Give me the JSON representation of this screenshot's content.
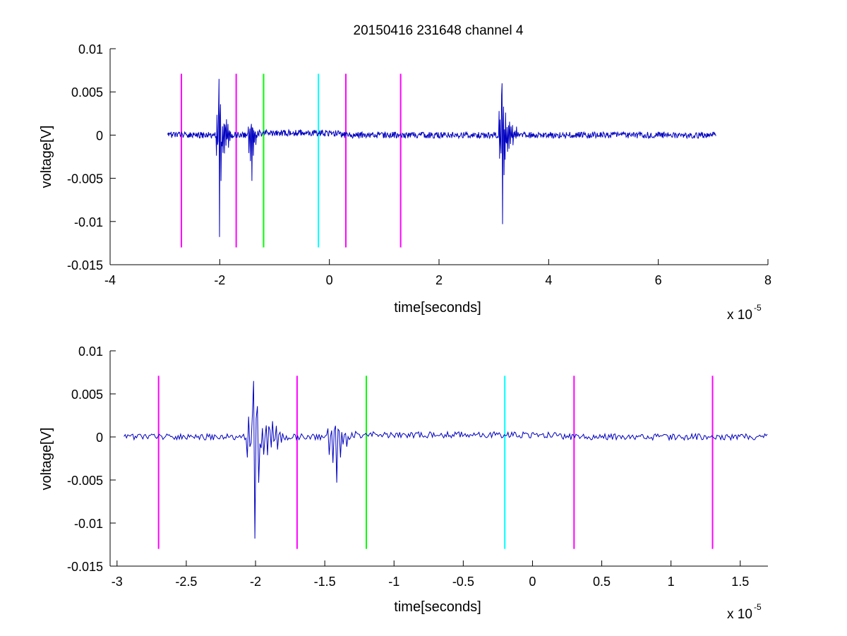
{
  "chart_data": [
    {
      "type": "line",
      "title": "20150416 231648 channel 4",
      "xlabel": "time[seconds]",
      "ylabel": "voltage[V]",
      "x_exponent_label": "x 10",
      "x_exponent": "-5",
      "xlim": [
        -4,
        8
      ],
      "ylim": [
        -0.015,
        0.01
      ],
      "x_ticks": [
        "-4",
        "-2",
        "0",
        "2",
        "4",
        "6",
        "8"
      ],
      "y_ticks": [
        "0.01",
        "0.005",
        "0",
        "-0.005",
        "-0.01",
        "-0.015"
      ],
      "grid": false,
      "markers": [
        {
          "x": -2.7,
          "color": "#ff00ff"
        },
        {
          "x": -1.7,
          "color": "#ff00ff"
        },
        {
          "x": -1.2,
          "color": "#00ff00"
        },
        {
          "x": -0.2,
          "color": "#00ffff"
        },
        {
          "x": 0.3,
          "color": "#ff00ff"
        },
        {
          "x": 1.3,
          "color": "#ff00ff"
        }
      ],
      "marker_range": [
        -0.013,
        0.0071
      ],
      "series": [
        {
          "color": "#0000c0",
          "x_range": [
            -2.95,
            7.05
          ],
          "baseline_noise": 0.0004,
          "bursts": [
            {
              "center": -2.01,
              "amp": 0.0065,
              "min": -0.0118,
              "width": 0.25
            },
            {
              "center": -1.42,
              "amp": 0.0013,
              "min": -0.0053,
              "width": 0.18
            },
            {
              "center": 3.15,
              "amp": 0.006,
              "min": -0.0103,
              "width": 0.3
            }
          ]
        }
      ]
    },
    {
      "type": "line",
      "title": "",
      "xlabel": "time[seconds]",
      "ylabel": "voltage[V]",
      "x_exponent_label": "x 10",
      "x_exponent": "-5",
      "xlim": [
        -3.05,
        1.7
      ],
      "ylim": [
        -0.015,
        0.01
      ],
      "x_ticks": [
        "-3",
        "-2.5",
        "-2",
        "-1.5",
        "-1",
        "-0.5",
        "0",
        "0.5",
        "1",
        "1.5"
      ],
      "y_ticks": [
        "0.01",
        "0.005",
        "0",
        "-0.005",
        "-0.01",
        "-0.015"
      ],
      "grid": false,
      "markers": [
        {
          "x": -2.7,
          "color": "#ff00ff"
        },
        {
          "x": -1.7,
          "color": "#ff00ff"
        },
        {
          "x": -1.2,
          "color": "#00ff00"
        },
        {
          "x": -0.2,
          "color": "#00ffff"
        },
        {
          "x": 0.3,
          "color": "#ff00ff"
        },
        {
          "x": 1.3,
          "color": "#ff00ff"
        }
      ],
      "marker_range": [
        -0.013,
        0.0071
      ],
      "series": [
        {
          "color": "#0000c0",
          "x_range": [
            -2.95,
            1.7
          ],
          "baseline_noise": 0.0004,
          "bursts": [
            {
              "center": -2.01,
              "amp": 0.0065,
              "min": -0.0118,
              "width": 0.25
            },
            {
              "center": -1.42,
              "amp": 0.0013,
              "min": -0.0053,
              "width": 0.18
            }
          ]
        }
      ]
    }
  ]
}
